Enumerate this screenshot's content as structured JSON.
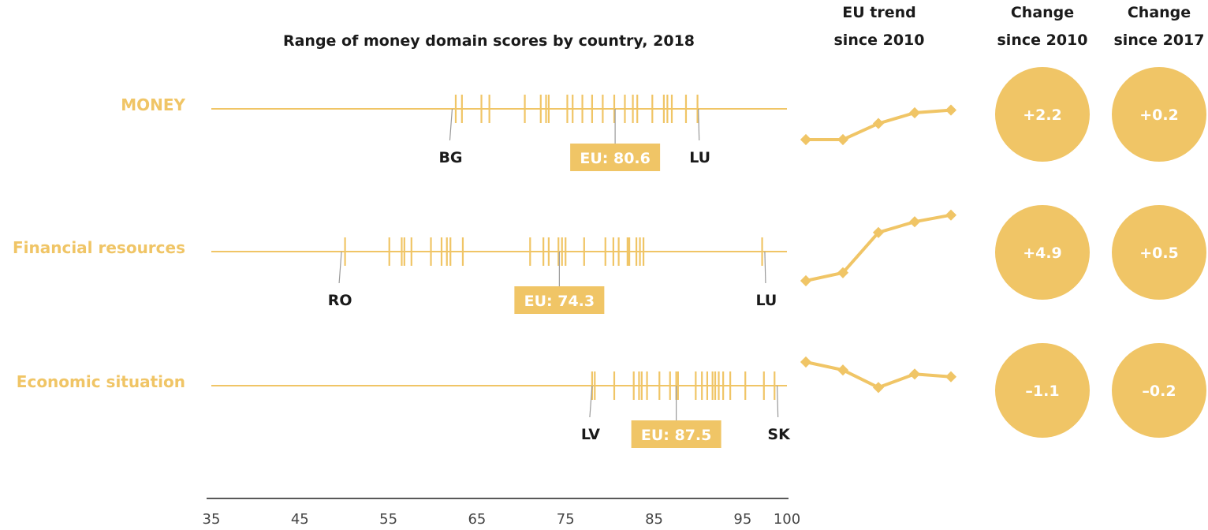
{
  "chart_data": {
    "type": "strip",
    "title": "Range of money domain scores by country, 2018",
    "headers": {
      "trend": [
        "EU trend",
        "since 2010"
      ],
      "change2010": [
        "Change",
        "since 2010"
      ],
      "change2017": [
        "Change",
        "since 2017"
      ]
    },
    "color": "#F0C566",
    "xlim": [
      35,
      100
    ],
    "xticks": [
      35,
      45,
      55,
      65,
      75,
      85,
      95,
      100
    ],
    "rows": [
      {
        "label": "MONEY",
        "values": [
          62.6,
          63.3,
          65.5,
          66.4,
          70.4,
          72.2,
          72.8,
          73.1,
          75.2,
          75.8,
          76.9,
          78.0,
          79.2,
          80.5,
          81.7,
          82.6,
          83.1,
          84.8,
          86.1,
          86.5,
          87.0,
          88.6,
          89.9
        ],
        "eu": 80.6,
        "eu_label": "EU: 80.6",
        "min_country": "BG",
        "min_value": 62.2,
        "max_country": "LU",
        "max_value": 90.0,
        "trend": [
          78.4,
          78.4,
          79.6,
          80.4,
          80.6
        ],
        "change_2010": "+2.2",
        "change_2017": "+0.2"
      },
      {
        "label": "Financial resources",
        "values": [
          50.1,
          55.1,
          56.5,
          56.8,
          57.6,
          59.8,
          61.0,
          61.6,
          62.0,
          63.4,
          71.0,
          72.5,
          73.1,
          74.2,
          74.6,
          75.0,
          77.1,
          79.5,
          80.4,
          81.0,
          82.0,
          82.2,
          83.0,
          83.4,
          83.8,
          97.2
        ],
        "eu": 74.3,
        "eu_label": "EU: 74.3",
        "min_country": "RO",
        "min_value": 49.7,
        "max_country": "LU",
        "max_value": 97.5,
        "trend": [
          69.4,
          70.0,
          73.0,
          73.8,
          74.3
        ],
        "change_2010": "+4.9",
        "change_2017": "+0.5"
      },
      {
        "label": "Economic situation",
        "values": [
          78.0,
          78.3,
          80.5,
          82.7,
          83.3,
          83.6,
          84.2,
          85.6,
          86.8,
          87.5,
          87.7,
          89.7,
          90.4,
          91.0,
          91.6,
          91.9,
          92.3,
          92.8,
          93.6,
          95.3,
          97.4,
          98.6
        ],
        "eu": 87.5,
        "eu_label": "EU: 87.5",
        "min_country": "LV",
        "min_value": 78.0,
        "max_country": "SK",
        "max_value": 98.9,
        "trend": [
          88.6,
          88.0,
          86.7,
          87.7,
          87.5
        ],
        "change_2010": "–1.1",
        "change_2017": "–0.2"
      }
    ]
  }
}
